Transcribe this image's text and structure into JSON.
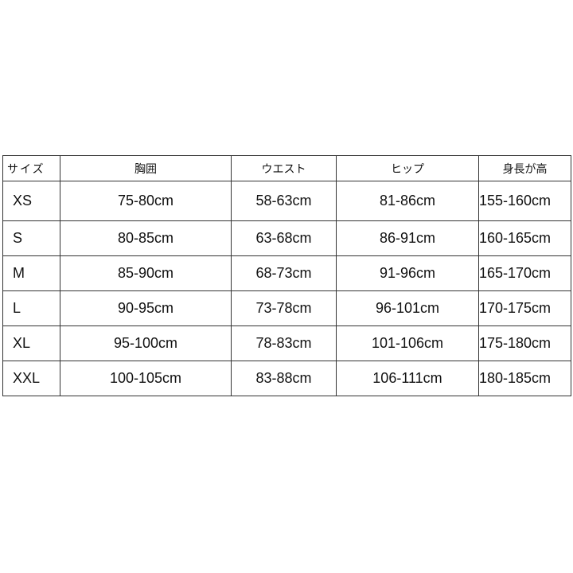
{
  "table": {
    "headers": [
      "サイズ",
      "胸囲",
      "ウエスト",
      "ヒップ",
      "身長が高"
    ],
    "rows": [
      [
        "XS",
        "75-80cm",
        "58-63cm",
        "81-86cm",
        "155-160cm"
      ],
      [
        "S",
        "80-85cm",
        "63-68cm",
        "86-91cm",
        "160-165cm"
      ],
      [
        "M",
        "85-90cm",
        "68-73cm",
        "91-96cm",
        "165-170cm"
      ],
      [
        "L",
        "90-95cm",
        "73-78cm",
        "96-101cm",
        "170-175cm"
      ],
      [
        "XL",
        "95-100cm",
        "78-83cm",
        "101-106cm",
        "175-180cm"
      ],
      [
        "XXL",
        "100-105cm",
        "83-88cm",
        "106-111cm",
        "180-185cm"
      ]
    ]
  }
}
